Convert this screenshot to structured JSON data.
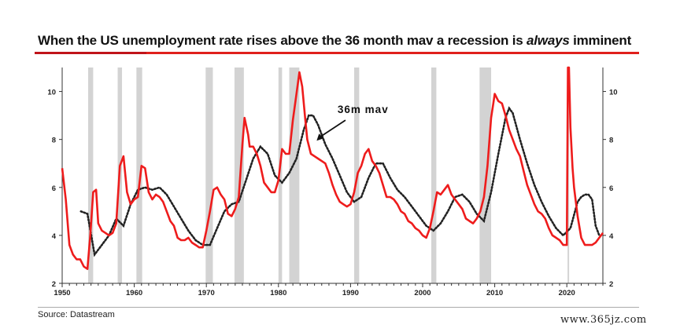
{
  "title": {
    "before": "When the US unemployment rate rises above the 36 month mav a recession is ",
    "emph": "always",
    "after": " imminent"
  },
  "source": "Source: Datastream",
  "watermark": "www.365jz.com",
  "colors": {
    "unemployment": "#ee1c1c",
    "mav": "#222222",
    "recession": "#d3d3d3",
    "title_rule": "#e0201c"
  },
  "chart_data": {
    "type": "line",
    "title": "When the US unemployment rate rises above the 36 month mav a recession is always imminent",
    "xlabel": "",
    "ylabel": "",
    "xlim": [
      1950,
      2025
    ],
    "ylim": [
      2,
      11
    ],
    "x_ticks": [
      1950,
      1960,
      1970,
      1980,
      1990,
      2000,
      2010,
      2020
    ],
    "y_ticks": [
      2,
      4,
      6,
      8,
      10
    ],
    "grid": false,
    "annotation": "36m mav",
    "recessions": [
      [
        1953.6,
        1954.3
      ],
      [
        1957.7,
        1958.3
      ],
      [
        1960.3,
        1961.1
      ],
      [
        1969.9,
        1970.9
      ],
      [
        1973.9,
        1975.2
      ],
      [
        1980.0,
        1980.5
      ],
      [
        1981.5,
        1982.9
      ],
      [
        1990.5,
        1991.2
      ],
      [
        2001.2,
        2001.9
      ],
      [
        2007.9,
        2009.5
      ],
      [
        2020.1,
        2020.3
      ]
    ],
    "series": [
      {
        "name": "",
        "style": "solid-red",
        "x": [
          1950,
          1950.5,
          1951,
          1951.5,
          1952,
          1952.5,
          1953,
          1953.5,
          1953.9,
          1954.3,
          1954.7,
          1955,
          1955.5,
          1956,
          1956.5,
          1957,
          1957.5,
          1958.0,
          1958.5,
          1959,
          1959.5,
          1960,
          1960.5,
          1961.0,
          1961.5,
          1962,
          1962.5,
          1963,
          1963.5,
          1964,
          1964.5,
          1965,
          1965.5,
          1966,
          1966.5,
          1967,
          1967.5,
          1968,
          1968.5,
          1969,
          1969.5,
          1970,
          1970.5,
          1971,
          1971.5,
          1972,
          1972.5,
          1973,
          1973.5,
          1974,
          1974.5,
          1975.0,
          1975.3,
          1975.8,
          1976,
          1976.5,
          1977,
          1977.5,
          1978,
          1978.5,
          1979,
          1979.5,
          1980,
          1980.5,
          1981,
          1981.5,
          1982,
          1982.5,
          1982.9,
          1983.3,
          1983.7,
          1984,
          1984.5,
          1985,
          1985.5,
          1986,
          1986.5,
          1987,
          1987.5,
          1988,
          1988.5,
          1989,
          1989.5,
          1990,
          1990.5,
          1991,
          1991.5,
          1992,
          1992.5,
          1993,
          1993.5,
          1994,
          1994.5,
          1995,
          1995.5,
          1996,
          1996.5,
          1997,
          1997.5,
          1998,
          1998.5,
          1999,
          1999.5,
          2000,
          2000.5,
          2001,
          2001.5,
          2002,
          2002.5,
          2003,
          2003.5,
          2004,
          2004.5,
          2005,
          2005.5,
          2006,
          2006.5,
          2007,
          2007.5,
          2008,
          2008.5,
          2009,
          2009.5,
          2009.8,
          2010,
          2010.5,
          2011,
          2011.5,
          2012,
          2012.5,
          2013,
          2013.5,
          2014,
          2014.5,
          2015,
          2015.5,
          2016,
          2016.5,
          2017,
          2017.5,
          2018,
          2018.5,
          2019,
          2019.5,
          2020.0,
          2020.15,
          2020.3,
          2020.5,
          2020.8,
          2021,
          2021.5,
          2022,
          2022.5,
          2023,
          2023.5,
          2024,
          2024.5,
          2025
        ],
        "y": [
          6.8,
          5.5,
          3.6,
          3.2,
          3.0,
          3.0,
          2.7,
          2.6,
          4.0,
          5.8,
          5.9,
          4.5,
          4.2,
          4.1,
          4.0,
          4.1,
          4.5,
          6.9,
          7.3,
          5.8,
          5.3,
          5.5,
          5.6,
          6.9,
          6.8,
          5.8,
          5.5,
          5.7,
          5.6,
          5.4,
          5.0,
          4.6,
          4.4,
          3.9,
          3.8,
          3.8,
          3.9,
          3.7,
          3.6,
          3.5,
          3.5,
          4.2,
          5.0,
          5.9,
          6.0,
          5.7,
          5.5,
          4.9,
          4.8,
          5.1,
          5.6,
          7.8,
          8.9,
          8.2,
          7.7,
          7.7,
          7.4,
          6.9,
          6.2,
          6.0,
          5.8,
          5.8,
          6.3,
          7.6,
          7.4,
          7.4,
          8.8,
          9.9,
          10.8,
          10.2,
          8.9,
          8.0,
          7.4,
          7.3,
          7.2,
          7.1,
          7.0,
          6.6,
          6.1,
          5.7,
          5.4,
          5.3,
          5.2,
          5.3,
          5.8,
          6.6,
          6.9,
          7.4,
          7.6,
          7.1,
          6.9,
          6.6,
          6.1,
          5.6,
          5.6,
          5.5,
          5.3,
          5.0,
          4.9,
          4.6,
          4.5,
          4.3,
          4.2,
          4.0,
          3.9,
          4.3,
          5.0,
          5.8,
          5.7,
          5.9,
          6.1,
          5.7,
          5.5,
          5.3,
          5.1,
          4.7,
          4.6,
          4.5,
          4.7,
          5.0,
          5.6,
          6.9,
          8.9,
          9.5,
          9.9,
          9.6,
          9.5,
          9.0,
          8.4,
          8.0,
          7.6,
          7.3,
          6.7,
          6.1,
          5.7,
          5.3,
          5.0,
          4.9,
          4.7,
          4.3,
          4.0,
          3.9,
          3.8,
          3.6,
          3.6,
          11.0,
          11.0,
          8.5,
          6.8,
          6.0,
          4.8,
          3.9,
          3.6,
          3.6,
          3.6,
          3.7,
          3.9,
          4.1
        ]
      },
      {
        "name": "36m mav",
        "style": "dotted-black",
        "x": [
          1952.6,
          1953.5,
          1954.5,
          1955.5,
          1956.5,
          1957.5,
          1958.5,
          1959.5,
          1960.5,
          1961.5,
          1962.5,
          1963.5,
          1964.5,
          1965.5,
          1966.5,
          1967.5,
          1968.5,
          1969.5,
          1970.5,
          1971.5,
          1972.5,
          1973.5,
          1974.5,
          1975.5,
          1976.5,
          1977.5,
          1978.5,
          1979.5,
          1980.5,
          1981.5,
          1982.5,
          1983.5,
          1984.2,
          1984.8,
          1985.5,
          1986.5,
          1987.5,
          1988.5,
          1989.5,
          1990.5,
          1991.5,
          1992.5,
          1993.5,
          1994.5,
          1995.5,
          1996.5,
          1997.5,
          1998.5,
          1999.5,
          2000.5,
          2001.5,
          2002.5,
          2003.5,
          2004.5,
          2005.5,
          2006.5,
          2007.5,
          2008.5,
          2009.5,
          2010.5,
          2011.5,
          2012.0,
          2012.5,
          2013.5,
          2014.5,
          2015.5,
          2016.5,
          2017.5,
          2018.5,
          2019.5,
          2020.5,
          2021.5,
          2022.0,
          2022.5,
          2023.0,
          2023.5,
          2024.0,
          2024.5
        ],
        "y": [
          5.0,
          4.9,
          3.2,
          3.6,
          4.0,
          4.7,
          4.4,
          5.3,
          5.9,
          6.0,
          5.9,
          6.0,
          5.7,
          5.2,
          4.7,
          4.2,
          3.8,
          3.6,
          3.6,
          4.3,
          5.0,
          5.3,
          5.4,
          6.3,
          7.2,
          7.7,
          7.4,
          6.5,
          6.2,
          6.6,
          7.2,
          8.4,
          9.0,
          9.0,
          8.6,
          7.8,
          7.2,
          6.5,
          5.8,
          5.4,
          5.6,
          6.4,
          7.0,
          7.0,
          6.4,
          5.9,
          5.6,
          5.2,
          4.8,
          4.4,
          4.2,
          4.5,
          5.0,
          5.6,
          5.7,
          5.4,
          4.9,
          4.6,
          5.8,
          7.4,
          8.9,
          9.3,
          9.1,
          8.0,
          7.0,
          6.1,
          5.4,
          4.8,
          4.3,
          4.0,
          4.3,
          5.4,
          5.6,
          5.7,
          5.7,
          5.5,
          4.4,
          4.0
        ]
      }
    ]
  }
}
